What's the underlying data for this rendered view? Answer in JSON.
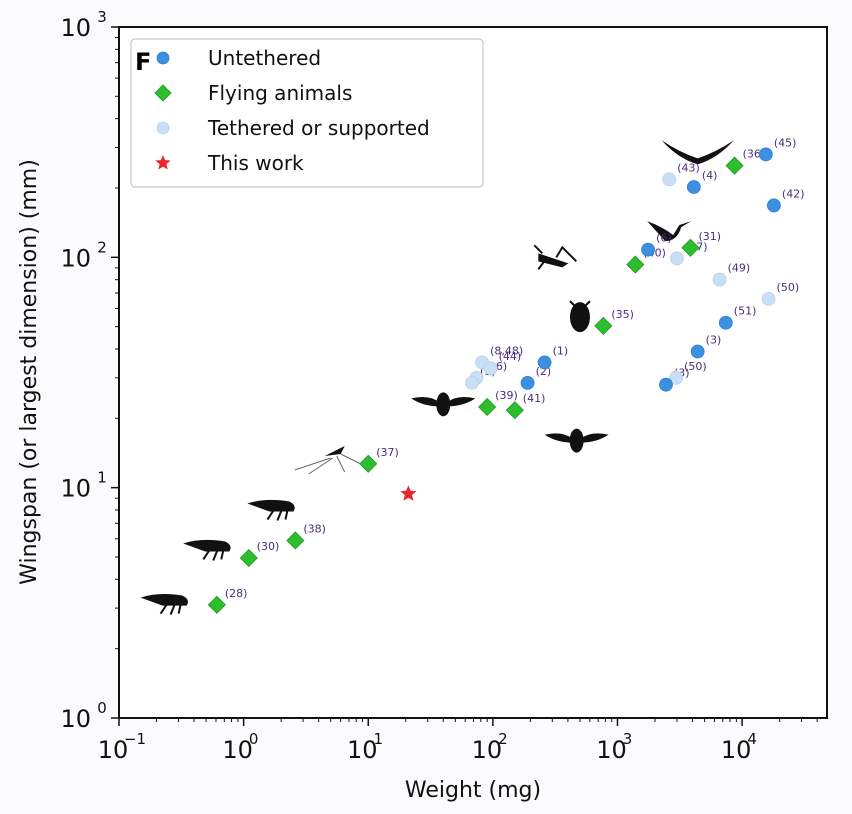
{
  "chart_data": {
    "type": "scatter",
    "panel_label": "F",
    "title": "",
    "xlabel": "Weight (mg)",
    "ylabel": "Wingspan (or largest dimension) (mm)",
    "xscale": "log",
    "yscale": "log",
    "xlim": [
      0.1,
      48000
    ],
    "ylim": [
      1,
      1000
    ],
    "x_ticks": [
      {
        "value": 0.1,
        "base": "10",
        "exp": "−1"
      },
      {
        "value": 1,
        "base": "10",
        "exp": "0"
      },
      {
        "value": 10,
        "base": "10",
        "exp": "1"
      },
      {
        "value": 100,
        "base": "10",
        "exp": "2"
      },
      {
        "value": 1000,
        "base": "10",
        "exp": "3"
      },
      {
        "value": 10000,
        "base": "10",
        "exp": "4"
      }
    ],
    "y_ticks": [
      {
        "value": 1,
        "base": "10",
        "exp": "0"
      },
      {
        "value": 10,
        "base": "10",
        "exp": "1"
      },
      {
        "value": 100,
        "base": "10",
        "exp": "2"
      },
      {
        "value": 1000,
        "base": "10",
        "exp": "3"
      }
    ],
    "grid": false,
    "legend_position": "top-left",
    "legend": [
      {
        "label": "Untethered",
        "marker": "circle",
        "color": "#3d8fe0"
      },
      {
        "label": "Flying animals",
        "marker": "diamond",
        "color": "#2ebd2e"
      },
      {
        "label": "Tethered or supported",
        "marker": "circle",
        "color": "#c9dff5"
      },
      {
        "label": "This work",
        "marker": "star",
        "color": "#e8262b"
      }
    ],
    "series": [
      {
        "name": "Untethered",
        "points": [
          {
            "x": 260,
            "y": 35,
            "ref": "(1)"
          },
          {
            "x": 190,
            "y": 28.5,
            "ref": "(2)"
          },
          {
            "x": 1760,
            "y": 108,
            "ref": "(6)"
          },
          {
            "x": 4100,
            "y": 202,
            "ref": "(4)"
          },
          {
            "x": 15500,
            "y": 280,
            "ref": "(45)"
          },
          {
            "x": 18000,
            "y": 168,
            "ref": "(42)"
          },
          {
            "x": 7400,
            "y": 52,
            "ref": "(51)"
          },
          {
            "x": 4400,
            "y": 39,
            "ref": "(3)"
          },
          {
            "x": 2450,
            "y": 28,
            "ref": "(3)"
          }
        ]
      },
      {
        "name": "Flying animals",
        "points": [
          {
            "x": 0.61,
            "y": 3.1,
            "ref": "(28)"
          },
          {
            "x": 1.1,
            "y": 4.95,
            "ref": "(30)"
          },
          {
            "x": 2.6,
            "y": 5.9,
            "ref": "(38)"
          },
          {
            "x": 10,
            "y": 12.7,
            "ref": "(37)"
          },
          {
            "x": 90,
            "y": 22.4,
            "ref": "(39)"
          },
          {
            "x": 150,
            "y": 21.7,
            "ref": "(41)"
          },
          {
            "x": 770,
            "y": 50.4,
            "ref": "(35)"
          },
          {
            "x": 1390,
            "y": 93,
            "ref": "(40)"
          },
          {
            "x": 3850,
            "y": 110,
            "ref": "(31)"
          },
          {
            "x": 8700,
            "y": 250,
            "ref": "(36)"
          }
        ]
      },
      {
        "name": "Tethered or supported",
        "points": [
          {
            "x": 2600,
            "y": 218,
            "ref": "(43)"
          },
          {
            "x": 3000,
            "y": 99,
            "ref": "(47)"
          },
          {
            "x": 6600,
            "y": 80,
            "ref": "(49)"
          },
          {
            "x": 16300,
            "y": 66,
            "ref": "(50)"
          },
          {
            "x": 2950,
            "y": 30,
            "ref": "(50)"
          },
          {
            "x": 82,
            "y": 35,
            "ref": "(8,48)"
          },
          {
            "x": 96,
            "y": 33,
            "ref": "(44)"
          },
          {
            "x": 74,
            "y": 30,
            "ref": "(46)"
          },
          {
            "x": 68,
            "y": 28.5,
            "ref": "(9)"
          }
        ]
      },
      {
        "name": "This work",
        "points": [
          {
            "x": 21,
            "y": 9.4,
            "ref": ""
          }
        ]
      }
    ],
    "silhouettes": [
      {
        "name": "wasp",
        "x": 0.25,
        "y": 3.2
      },
      {
        "name": "fruit-fly",
        "x": 0.55,
        "y": 5.5
      },
      {
        "name": "cockroach",
        "x": 1.8,
        "y": 8.2
      },
      {
        "name": "mosquito",
        "x": 5,
        "y": 14
      },
      {
        "name": "bee",
        "x": 40,
        "y": 23
      },
      {
        "name": "hoverfly",
        "x": 470,
        "y": 16
      },
      {
        "name": "beetle",
        "x": 500,
        "y": 55
      },
      {
        "name": "locust",
        "x": 300,
        "y": 100
      },
      {
        "name": "hummingbird",
        "x": 2600,
        "y": 130
      },
      {
        "name": "bat",
        "x": 4400,
        "y": 280
      }
    ]
  },
  "labels_ref_offsets_note": "reference numbers shown next to points"
}
